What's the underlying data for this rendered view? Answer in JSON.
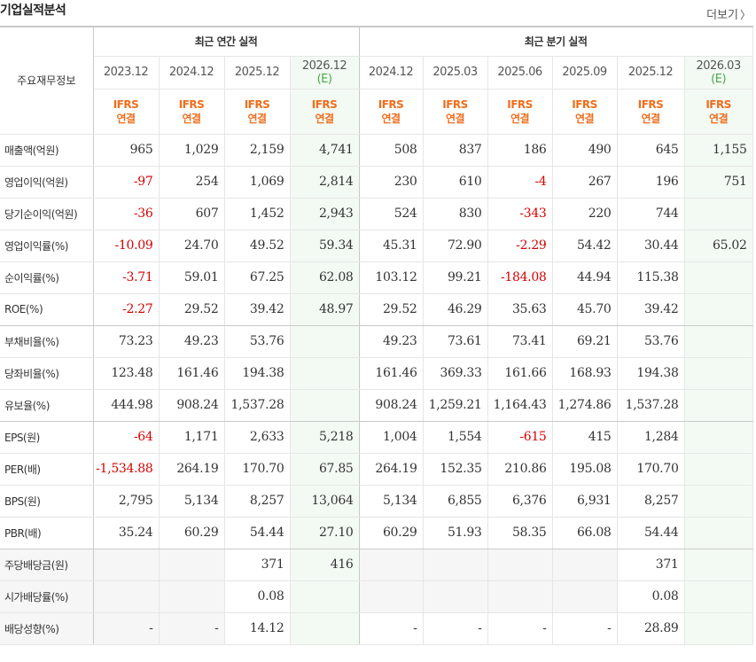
{
  "header": {
    "title": "기업실적분석",
    "more_label": "더보기",
    "more_icon": "chevron-right-icon"
  },
  "table": {
    "corner_label": "주요재무정보",
    "section_annual": "최근 연간 실적",
    "section_quarter": "최근 분기 실적",
    "periods": [
      {
        "label": "2023.12",
        "est": ""
      },
      {
        "label": "2024.12",
        "est": ""
      },
      {
        "label": "2025.12",
        "est": ""
      },
      {
        "label": "2026.12",
        "est": "(E)"
      },
      {
        "label": "2024.12",
        "est": ""
      },
      {
        "label": "2025.03",
        "est": ""
      },
      {
        "label": "2025.06",
        "est": ""
      },
      {
        "label": "2025.09",
        "est": ""
      },
      {
        "label": "2025.12",
        "est": ""
      },
      {
        "label": "2026.03",
        "est": "(E)"
      }
    ],
    "standard_top": "IFRS",
    "standard_bottom": "연결",
    "rows": [
      {
        "label": "매출액(억원)",
        "values": [
          "965",
          "1,029",
          "2,159",
          "4,741",
          "508",
          "837",
          "186",
          "490",
          "645",
          "1,155"
        ]
      },
      {
        "label": "영업이익(억원)",
        "values": [
          "-97",
          "254",
          "1,069",
          "2,814",
          "230",
          "610",
          "-4",
          "267",
          "196",
          "751"
        ]
      },
      {
        "label": "당기순이익(억원)",
        "values": [
          "-36",
          "607",
          "1,452",
          "2,943",
          "524",
          "830",
          "-343",
          "220",
          "744",
          ""
        ]
      },
      {
        "label": "영업이익률(%)",
        "values": [
          "-10.09",
          "24.70",
          "49.52",
          "59.34",
          "45.31",
          "72.90",
          "-2.29",
          "54.42",
          "30.44",
          "65.02"
        ]
      },
      {
        "label": "순이익률(%)",
        "values": [
          "-3.71",
          "59.01",
          "67.25",
          "62.08",
          "103.12",
          "99.21",
          "-184.08",
          "44.94",
          "115.38",
          ""
        ]
      },
      {
        "label": "ROE(%)",
        "values": [
          "-2.27",
          "29.52",
          "39.42",
          "48.97",
          "29.52",
          "46.29",
          "35.63",
          "45.70",
          "39.42",
          ""
        ]
      },
      {
        "label": "부채비율(%)",
        "values": [
          "73.23",
          "49.23",
          "53.76",
          "",
          "49.23",
          "73.61",
          "73.41",
          "69.21",
          "53.76",
          ""
        ]
      },
      {
        "label": "당좌비율(%)",
        "values": [
          "123.48",
          "161.46",
          "194.38",
          "",
          "161.46",
          "369.33",
          "161.66",
          "168.93",
          "194.38",
          ""
        ]
      },
      {
        "label": "유보율(%)",
        "values": [
          "444.98",
          "908.24",
          "1,537.28",
          "",
          "908.24",
          "1,259.21",
          "1,164.43",
          "1,274.86",
          "1,537.28",
          ""
        ]
      },
      {
        "label": "EPS(원)",
        "values": [
          "-64",
          "1,171",
          "2,633",
          "5,218",
          "1,004",
          "1,554",
          "-615",
          "415",
          "1,284",
          ""
        ]
      },
      {
        "label": "PER(배)",
        "values": [
          "-1,534.88",
          "264.19",
          "170.70",
          "67.85",
          "264.19",
          "152.35",
          "210.86",
          "195.08",
          "170.70",
          ""
        ]
      },
      {
        "label": "BPS(원)",
        "values": [
          "2,795",
          "5,134",
          "8,257",
          "13,064",
          "5,134",
          "6,855",
          "6,376",
          "6,931",
          "8,257",
          ""
        ]
      },
      {
        "label": "PBR(배)",
        "values": [
          "35.24",
          "60.29",
          "54.44",
          "27.10",
          "60.29",
          "51.93",
          "58.35",
          "66.08",
          "54.44",
          ""
        ]
      },
      {
        "label": "주당배당금(원)",
        "values": [
          "",
          "",
          "371",
          "416",
          "",
          "",
          "",
          "",
          "371",
          ""
        ]
      },
      {
        "label": "시가배당률(%)",
        "values": [
          "",
          "",
          "0.08",
          "",
          "",
          "",
          "",
          "",
          "0.08",
          ""
        ]
      },
      {
        "label": "배당성향(%)",
        "values": [
          "-",
          "-",
          "14.12",
          "",
          "-",
          "-",
          "-",
          "-",
          "28.89",
          ""
        ]
      }
    ],
    "colors": {
      "negative": "#d80000",
      "ifrs": "#f06d1b",
      "estimate": "#4aa84a",
      "estimate_bg": "#f3faf3"
    }
  }
}
